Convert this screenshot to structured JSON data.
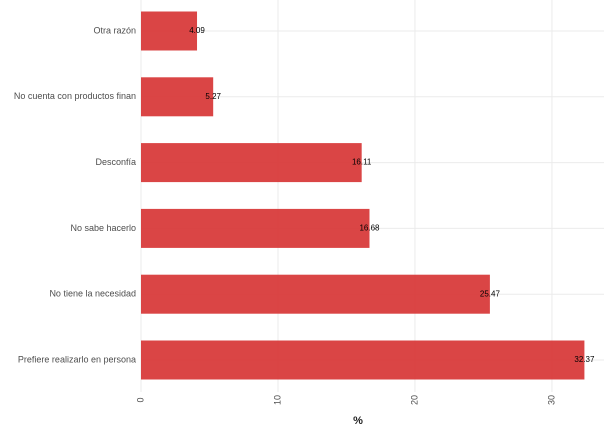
{
  "chart_data": {
    "type": "hbar",
    "x_label": "%",
    "categories": [
      "Otra razón",
      "No cuenta con productos finan",
      "Desconfía",
      "No sabe hacerlo",
      "No tiene la necesidad",
      "Prefiere realizarlo en persona"
    ],
    "values": [
      4.09,
      5.27,
      16.11,
      16.68,
      25.47,
      32.37
    ],
    "color": "#d73535",
    "xlim": [
      0,
      33.8
    ],
    "xticks": [
      0,
      10,
      20,
      30
    ],
    "grid": true
  }
}
